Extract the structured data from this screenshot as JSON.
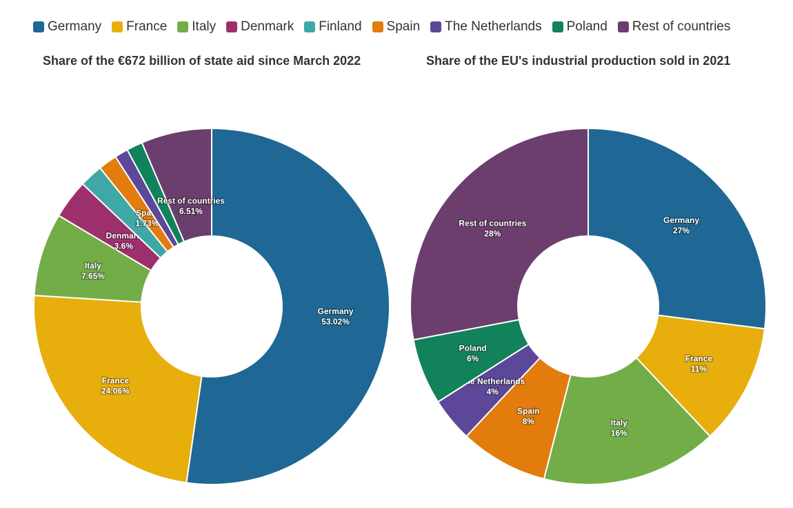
{
  "legend": [
    {
      "label": "Germany",
      "color": "#1f6794"
    },
    {
      "label": "France",
      "color": "#e8ae0c"
    },
    {
      "label": "Italy",
      "color": "#72ad47"
    },
    {
      "label": "Denmark",
      "color": "#9e2f6d"
    },
    {
      "label": "Finland",
      "color": "#3fa8a6"
    },
    {
      "label": "Spain",
      "color": "#e17c0d"
    },
    {
      "label": "The Netherlands",
      "color": "#5d4799"
    },
    {
      "label": "Poland",
      "color": "#12825a"
    },
    {
      "label": "Rest of countries",
      "color": "#6b3e6e"
    }
  ],
  "chart_data": [
    {
      "type": "pie",
      "donut": true,
      "title": "Share of the €672 billion of state aid since March 2022",
      "categories": [
        "Germany",
        "France",
        "Italy",
        "Denmark",
        "Finland",
        "Spain",
        "The Netherlands",
        "Poland",
        "Rest of countries"
      ],
      "values": [
        53.02,
        24.06,
        7.65,
        3.6,
        2.15,
        1.73,
        1.24,
        1.48,
        6.51
      ],
      "data_labels": [
        "53.02%",
        "24.06%",
        "7.65%",
        "3.6%",
        "",
        "1.73%",
        "",
        "",
        "6.51%"
      ],
      "label_names": [
        "Germany",
        "France",
        "Italy",
        "Denmark",
        "",
        "Spain",
        "",
        "",
        "Rest of countries"
      ],
      "colors": [
        "#1f6794",
        "#e8ae0c",
        "#72ad47",
        "#9e2f6d",
        "#3fa8a6",
        "#e17c0d",
        "#5d4799",
        "#12825a",
        "#6b3e6e"
      ]
    },
    {
      "type": "pie",
      "donut": true,
      "title": "Share of the EU's industrial production sold in 2021",
      "categories": [
        "Germany",
        "France",
        "Italy",
        "Spain",
        "The Netherlands",
        "Poland",
        "Rest of countries"
      ],
      "values": [
        27,
        11,
        16,
        8,
        4,
        6,
        28
      ],
      "data_labels": [
        "27%",
        "11%",
        "16%",
        "8%",
        "4%",
        "6%",
        "28%"
      ],
      "label_names": [
        "Germany",
        "France",
        "Italy",
        "Spain",
        "The Netherlands",
        "Poland",
        "Rest of countries"
      ],
      "colors": [
        "#1f6794",
        "#e8ae0c",
        "#72ad47",
        "#e17c0d",
        "#5d4799",
        "#12825a",
        "#6b3e6e"
      ]
    }
  ]
}
